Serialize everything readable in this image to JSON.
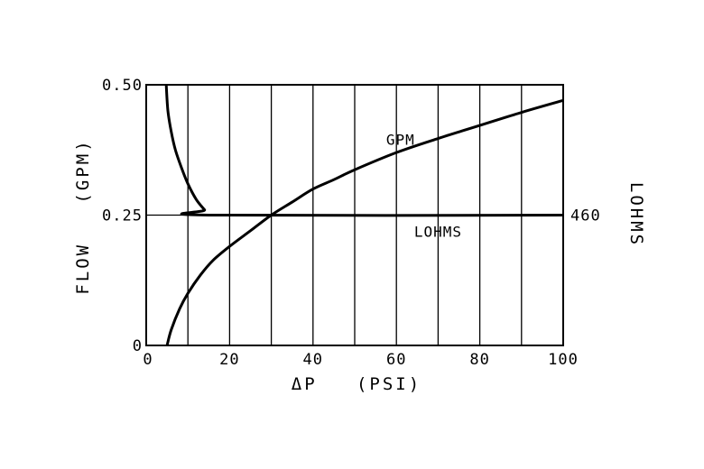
{
  "chart_data": {
    "type": "line",
    "xlabel": "ΔP   (PSI)",
    "ylabel": "FLOW   (GPM)",
    "y2label": "LOHMS",
    "xlim": [
      0,
      100
    ],
    "ylim": [
      0,
      0.5
    ],
    "x_ticks": [
      "0",
      "20",
      "40",
      "60",
      "80",
      "100"
    ],
    "y_ticks": [
      "0",
      "0.25",
      "0.50"
    ],
    "y2_ticks": [
      "460"
    ],
    "grid": "vertical every 10 PSI",
    "series": [
      {
        "name": "GPM",
        "x": [
          5,
          6,
          8,
          10,
          13,
          16,
          20,
          25,
          30,
          35,
          40,
          45,
          50,
          60,
          70,
          80,
          90,
          100
        ],
        "y": [
          0.0,
          0.03,
          0.07,
          0.1,
          0.135,
          0.163,
          0.19,
          0.22,
          0.25,
          0.275,
          0.3,
          0.318,
          0.337,
          0.37,
          0.397,
          0.422,
          0.447,
          0.47
        ]
      },
      {
        "name": "LOHMS",
        "x": [
          4.8,
          5.2,
          6,
          7,
          8.5,
          10,
          12,
          14,
          15,
          100
        ],
        "y": [
          0.5,
          0.45,
          0.41,
          0.375,
          0.34,
          0.31,
          0.28,
          0.26,
          0.25,
          0.25
        ]
      }
    ],
    "reference_line": {
      "y": 0.25,
      "x_from": 0,
      "x_to": 100
    }
  }
}
